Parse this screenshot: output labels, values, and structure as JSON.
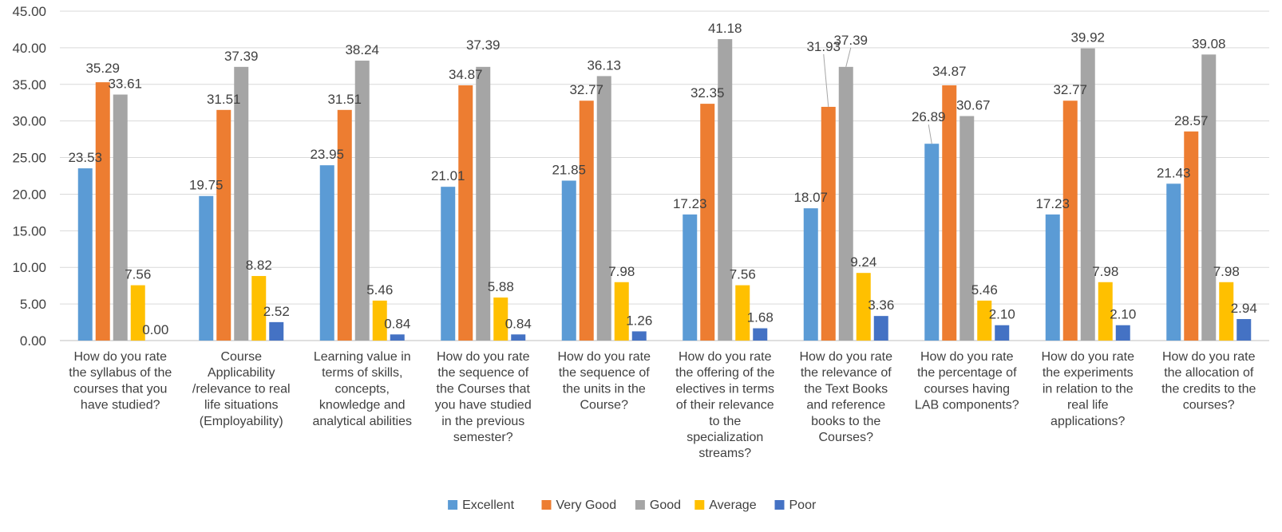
{
  "chart_data": {
    "type": "bar",
    "title": "",
    "xlabel": "",
    "ylabel": "",
    "ylim": [
      0,
      45
    ],
    "yticks": [
      "0.00",
      "5.00",
      "10.00",
      "15.00",
      "20.00",
      "25.00",
      "30.00",
      "35.00",
      "40.00",
      "45.00"
    ],
    "grid": true,
    "legend_position": "bottom",
    "categories": [
      "How do you rate the syllabus of the courses that you have studied?",
      "Course Applicability /relevance to real life situations (Employability)",
      "Learning value in terms of skills, concepts, knowledge and analytical abilities",
      "How do you rate the sequence of the Courses that you have studied in the previous semester?",
      "How do you rate the sequence of the units in the Course?",
      "How do you rate the offering of the electives in terms of their relevance to the specialization streams?",
      "How do you rate the relevance of the Text Books and reference books to the Courses?",
      "How do you rate the percentage of courses having LAB components?",
      "How do you rate the experiments in relation to the real life applications?",
      "How do you rate the allocation of the credits to the courses?"
    ],
    "category_lines": [
      [
        "How do you rate",
        "the syllabus of the",
        "courses that you",
        "have studied?"
      ],
      [
        "Course",
        "Applicability",
        "/relevance to real",
        "life situations",
        "(Employability)"
      ],
      [
        "Learning value in",
        "terms of skills,",
        "concepts,",
        "knowledge and",
        "analytical abilities"
      ],
      [
        "How do you rate",
        "the sequence of",
        "the Courses that",
        "you have studied",
        "in the previous",
        "semester?"
      ],
      [
        "How do you rate",
        "the sequence of",
        "the units in the",
        "Course?"
      ],
      [
        "How do you rate",
        "the offering of the",
        "electives in terms",
        "of their relevance",
        "to the",
        "specialization",
        "streams?"
      ],
      [
        "How do you rate",
        "the relevance of",
        "the Text Books",
        "and reference",
        "books to the",
        "Courses?"
      ],
      [
        "How do you rate",
        "the percentage of",
        "courses having",
        "LAB components?"
      ],
      [
        "How do you rate",
        "the experiments",
        "in relation to the",
        "real life",
        "applications?"
      ],
      [
        "How do you rate",
        "the allocation of",
        "the credits to the",
        "courses?"
      ]
    ],
    "series": [
      {
        "name": "Excellent",
        "color": "#5B9BD5",
        "values": [
          23.53,
          19.75,
          23.95,
          21.01,
          21.85,
          17.23,
          18.07,
          26.89,
          17.23,
          21.43
        ]
      },
      {
        "name": "Very Good",
        "color": "#ED7D31",
        "values": [
          35.29,
          31.51,
          31.51,
          34.87,
          32.77,
          32.35,
          31.93,
          34.87,
          32.77,
          28.57
        ]
      },
      {
        "name": "Good",
        "color": "#A5A5A5",
        "values": [
          33.61,
          37.39,
          38.24,
          37.39,
          36.13,
          41.18,
          37.39,
          30.67,
          39.92,
          39.08
        ]
      },
      {
        "name": "Average",
        "color": "#FFC000",
        "values": [
          7.56,
          8.82,
          5.46,
          5.88,
          7.98,
          7.56,
          9.24,
          5.46,
          7.98,
          7.98
        ]
      },
      {
        "name": "Poor",
        "color": "#4472C4",
        "values": [
          0.0,
          2.52,
          0.84,
          0.84,
          1.26,
          1.68,
          3.36,
          2.1,
          2.1,
          2.94
        ]
      }
    ],
    "data_labels": [
      [
        "23.53",
        "19.75",
        "23.95",
        "21.01",
        "21.85",
        "17.23",
        "18.07",
        "26.89",
        "17.23",
        "21.43"
      ],
      [
        "35.29",
        "31.51",
        "31.51",
        "34.87",
        "32.77",
        "32.35",
        "31.93",
        "34.87",
        "32.77",
        "28.57"
      ],
      [
        "33.61",
        "37.39",
        "38.24",
        "37.39",
        "36.13",
        "41.18",
        "37.39",
        "30.67",
        "39.92",
        "39.08"
      ],
      [
        "7.56",
        "8.82",
        "5.46",
        "5.88",
        "7.98",
        "7.56",
        "9.24",
        "5.46",
        "7.98",
        "7.98"
      ],
      [
        "0.00",
        "2.52",
        "0.84",
        "0.84",
        "1.26",
        "1.68",
        "3.36",
        "2.10",
        "2.10",
        "2.94"
      ]
    ]
  }
}
